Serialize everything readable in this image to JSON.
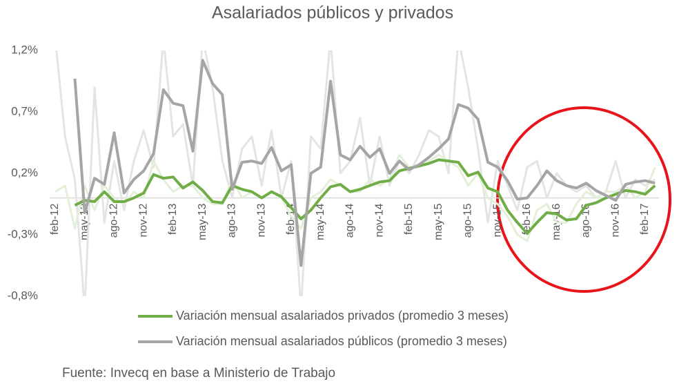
{
  "chart_data": {
    "type": "line",
    "title": "Asalariados públicos y privados",
    "source": "Fuente: Invecq en base a Ministerio de Trabajo",
    "categories": [
      "feb-12",
      null,
      null,
      "may-12",
      null,
      null,
      "ago-12",
      null,
      null,
      "nov-12",
      null,
      null,
      "feb-13",
      null,
      null,
      "may-13",
      null,
      null,
      "ago-13",
      null,
      null,
      "nov-13",
      null,
      null,
      "feb-14",
      null,
      null,
      "may-14",
      null,
      null,
      "ago-14",
      null,
      null,
      "nov-14",
      null,
      null,
      "feb-15",
      null,
      null,
      "may-15",
      null,
      null,
      "ago-15",
      null,
      null,
      "nov-15",
      null,
      null,
      "feb-16",
      null,
      null,
      "may-16",
      null,
      null,
      "ago-16",
      null,
      null,
      "nov-16",
      null,
      null,
      "feb-17",
      null
    ],
    "ylim": [
      -0.8,
      1.2
    ],
    "yticks": [
      {
        "value": -0.8,
        "label": "-0,8%"
      },
      {
        "value": -0.3,
        "label": "-0,3%"
      },
      {
        "value": 0.2,
        "label": "0,2%"
      },
      {
        "value": 0.7,
        "label": "0,7%"
      },
      {
        "value": 1.2,
        "label": "1,2%"
      }
    ],
    "series": [
      {
        "color": "#e4e4e4",
        "values": [
          1.3,
          0.5,
          0.15,
          -0.9,
          0.9,
          -0.2,
          0.3,
          -0.1,
          0.3,
          0.55,
          0.25,
          1.3,
          0.5,
          0.6,
          0.1,
          1.3,
          0.9,
          0.3,
          0.0,
          0.4,
          0.5,
          0.1,
          0.55,
          0.0,
          0.3,
          -0.9,
          0.5,
          0.4,
          1.3,
          0.2,
          0.3,
          0.65,
          0.1,
          0.5,
          0.1,
          0.3,
          0.2,
          0.35,
          0.55,
          0.5,
          0.2,
          1.3,
          0.9,
          0.4,
          -0.2,
          0.3,
          0.1,
          -0.1,
          0.25,
          0.3,
          0.0,
          0.2,
          0.1,
          0.05,
          0.1,
          0.0,
          0.05,
          0.3,
          0.0,
          0.15,
          0.1,
          0.15
        ]
      },
      {
        "color": "#e2efd9",
        "values": [
          0.05,
          0.1,
          -0.25,
          0.1,
          -0.1,
          0.1,
          0.0,
          -0.05,
          0.05,
          0.0,
          0.3,
          0.15,
          0.05,
          0.1,
          0.1,
          0.0,
          -0.05,
          -0.05,
          0.15,
          0.0,
          0.05,
          0.0,
          0.05,
          0.0,
          -0.15,
          -0.25,
          0.0,
          0.05,
          0.15,
          0.1,
          0.05,
          0.05,
          0.15,
          0.1,
          0.15,
          0.35,
          0.25,
          0.25,
          0.3,
          0.35,
          0.3,
          0.25,
          0.1,
          0.2,
          0.0,
          -0.05,
          -0.15,
          -0.3,
          -0.35,
          -0.1,
          -0.05,
          -0.2,
          -0.2,
          -0.05,
          0.05,
          0.0,
          0.05,
          0.05,
          0.1,
          0.0,
          0.05,
          0.25
        ]
      },
      {
        "name": "Variación mensual asalariados privados (promedio 3 meses)",
        "color": "#70ad47",
        "values": [
          null,
          null,
          -0.06,
          -0.02,
          -0.03,
          0.05,
          -0.03,
          -0.03,
          0.0,
          0.04,
          0.19,
          0.16,
          0.17,
          0.08,
          0.13,
          0.06,
          -0.03,
          -0.04,
          0.1,
          0.07,
          0.05,
          0.0,
          0.05,
          0.01,
          -0.08,
          -0.17,
          -0.1,
          0.0,
          0.09,
          0.11,
          0.05,
          0.07,
          0.1,
          0.13,
          0.14,
          0.22,
          0.24,
          0.26,
          0.28,
          0.31,
          0.3,
          0.29,
          0.18,
          0.21,
          0.08,
          0.05,
          -0.1,
          -0.2,
          -0.29,
          -0.2,
          -0.12,
          -0.13,
          -0.18,
          -0.17,
          -0.06,
          -0.04,
          0.0,
          0.03,
          0.06,
          0.05,
          0.03,
          0.1
        ]
      },
      {
        "name": "Variación mensual asalariados públicos (promedio 3 meses)",
        "color": "#a5a5a5",
        "values": [
          null,
          null,
          0.97,
          -0.12,
          0.16,
          0.11,
          0.53,
          0.04,
          0.15,
          0.22,
          0.36,
          0.88,
          0.77,
          0.75,
          0.38,
          1.12,
          0.93,
          0.84,
          0.07,
          0.29,
          0.3,
          0.28,
          0.41,
          0.22,
          0.27,
          -0.55,
          0.2,
          0.25,
          0.95,
          0.35,
          0.31,
          0.42,
          0.33,
          0.4,
          0.2,
          0.3,
          0.23,
          0.27,
          0.33,
          0.4,
          0.48,
          0.76,
          0.73,
          0.64,
          0.29,
          0.25,
          0.14,
          -0.01,
          0.0,
          0.1,
          0.22,
          0.14,
          0.1,
          0.08,
          0.12,
          0.06,
          0.02,
          -0.02,
          0.11,
          0.13,
          0.14,
          0.12
        ]
      }
    ]
  }
}
